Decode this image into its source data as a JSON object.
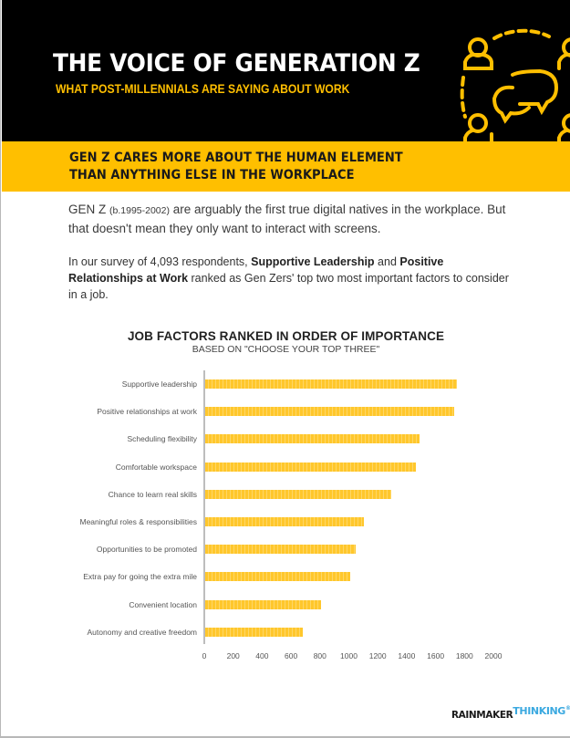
{
  "header": {
    "title": "THE VOICE OF GENERATION Z",
    "subtitle": "WHAT POST-MILLENNIALS ARE SAYING ABOUT WORK",
    "art_icon": "people-conversation-icon",
    "colors": {
      "background": "#000000",
      "accent": "#ffbf00",
      "title": "#ffffff"
    }
  },
  "band": {
    "line1": "GEN Z CARES MORE ABOUT THE HUMAN ELEMENT",
    "line2": "THAN ANYTHING ELSE IN THE WORKPLACE",
    "color": "#ffbf00"
  },
  "intro": {
    "p1_lead": "GEN Z ",
    "p1_small": "(b.1995-2002)",
    "p1_rest": " are arguably the first true digital natives in the workplace. But that doesn't mean they only want to interact with screens.",
    "p2_a": "In our survey of 4,093 respondents, ",
    "p2_b1": "Supportive Leadership",
    "p2_c": " and ",
    "p2_b2": "Positive Relationships at Work",
    "p2_d": " ranked as Gen Zers' top two most important factors to consider in a job."
  },
  "chart_data": {
    "type": "bar",
    "orientation": "horizontal",
    "title": "JOB FACTORS RANKED IN ORDER OF IMPORTANCE",
    "subtitle": "BASED ON \"CHOOSE YOUR TOP THREE\"",
    "xlabel": "",
    "ylabel": "",
    "xlim": [
      0,
      2000
    ],
    "x_ticks": [
      "0",
      "200",
      "400",
      "600",
      "800",
      "1000",
      "1200",
      "1400",
      "1600",
      "1800",
      "2000"
    ],
    "grid": false,
    "legend": null,
    "bar_color": "#ffc72c",
    "categories": [
      "Supportive leadership",
      "Positive relationships at work",
      "Scheduling flexibility",
      "Comfortable workspace",
      "Chance to learn real skills",
      "Meaningful roles & responsibilities",
      "Opportunities to be promoted",
      "Extra pay for going the extra mile",
      "Convenient location",
      "Autonomy and creative freedom"
    ],
    "values": [
      1740,
      1720,
      1480,
      1460,
      1290,
      1100,
      1040,
      1000,
      800,
      675
    ]
  },
  "footer": {
    "logo_part1": "RAINMAKER",
    "logo_part2": "THINKING",
    "logo_reg": "®"
  }
}
